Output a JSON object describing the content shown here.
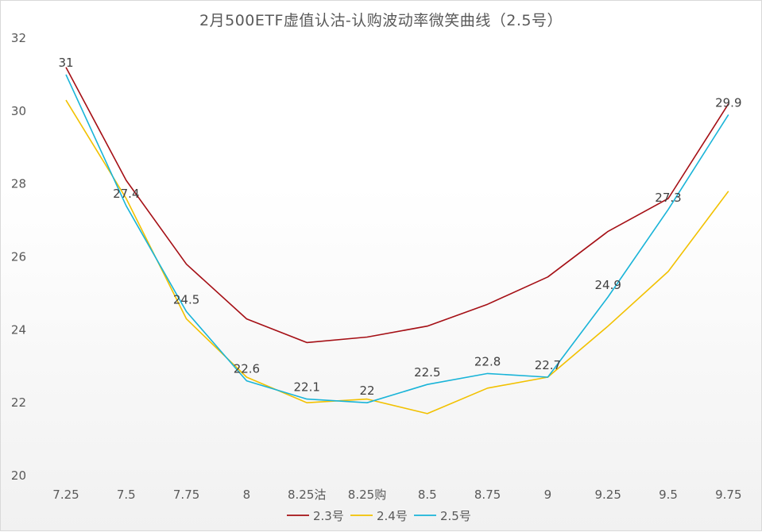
{
  "chart_data": {
    "type": "line",
    "title": "2月500ETF虚值认沽-认购波动率微笑曲线（2.5号）",
    "xlabel": "",
    "ylabel": "",
    "categories": [
      "7.25",
      "7.5",
      "7.75",
      "8",
      "8.25沽",
      "8.25购",
      "8.5",
      "8.75",
      "9",
      "9.25",
      "9.5",
      "9.75"
    ],
    "ylim": [
      20,
      32
    ],
    "yticks": [
      20,
      22,
      24,
      26,
      28,
      30,
      32
    ],
    "grid": false,
    "legend_position": "bottom",
    "series": [
      {
        "name": "2.3号",
        "color": "#a50f15",
        "values": [
          31.2,
          28.1,
          25.8,
          24.3,
          23.65,
          23.8,
          24.1,
          24.7,
          25.45,
          26.7,
          27.6,
          30.2
        ]
      },
      {
        "name": "2.4号",
        "color": "#f2c100",
        "values": [
          30.3,
          27.6,
          24.3,
          22.7,
          22.0,
          22.1,
          21.7,
          22.4,
          22.7,
          24.1,
          25.6,
          27.8
        ]
      },
      {
        "name": "2.5号",
        "color": "#19b4d8",
        "values": [
          31.0,
          27.4,
          24.5,
          22.6,
          22.1,
          22.0,
          22.5,
          22.8,
          22.7,
          24.9,
          27.3,
          29.9
        ],
        "data_labels": [
          "31",
          "27.4",
          "24.5",
          "22.6",
          "22.1",
          "22",
          "22.5",
          "22.8",
          "22.7",
          "24.9",
          "27.3",
          "29.9"
        ]
      }
    ]
  }
}
